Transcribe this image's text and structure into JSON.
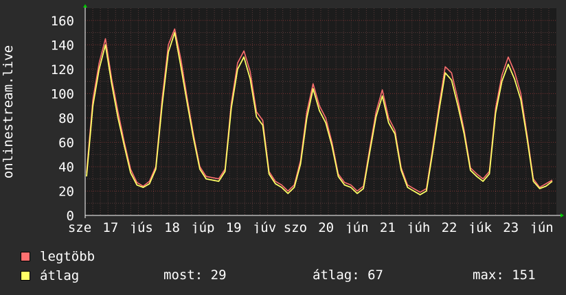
{
  "chart_data": {
    "type": "line",
    "ylabel": "onlinestream.live",
    "ylim": [
      0,
      170
    ],
    "yticks": [
      0,
      20,
      40,
      60,
      80,
      100,
      120,
      140,
      160
    ],
    "xlim": [
      0,
      168
    ],
    "xticks": [
      {
        "x": 0,
        "label": "sze"
      },
      {
        "x": 12,
        "label": "17"
      },
      {
        "x": 24,
        "label": "jús"
      },
      {
        "x": 36,
        "label": "18"
      },
      {
        "x": 48,
        "label": "júp"
      },
      {
        "x": 60,
        "label": "19"
      },
      {
        "x": 72,
        "label": "júv"
      },
      {
        "x": 84,
        "label": "szo"
      },
      {
        "x": 96,
        "label": "20"
      },
      {
        "x": 108,
        "label": "jún"
      },
      {
        "x": 120,
        "label": "21"
      },
      {
        "x": 132,
        "label": "júh"
      },
      {
        "x": 144,
        "label": "22"
      },
      {
        "x": 156,
        "label": "júk"
      },
      {
        "x": 168,
        "label": "23"
      },
      {
        "x": 180,
        "label": "jún"
      }
    ],
    "grid": true,
    "series": [
      {
        "name": "legtöbb",
        "color": "#ff7070",
        "values": [
          35,
          95,
          125,
          145,
          112,
          85,
          60,
          38,
          27,
          24,
          28,
          40,
          95,
          140,
          153,
          128,
          96,
          66,
          40,
          32,
          31,
          30,
          38,
          92,
          125,
          135,
          118,
          85,
          78,
          36,
          28,
          25,
          20,
          25,
          45,
          85,
          108,
          90,
          80,
          60,
          34,
          27,
          25,
          20,
          24,
          55,
          85,
          103,
          80,
          70,
          39,
          25,
          22,
          19,
          22,
          55,
          90,
          122,
          117,
          95,
          70,
          39,
          34,
          30,
          36,
          88,
          115,
          130,
          118,
          100,
          66,
          30,
          23,
          26,
          29
        ]
      },
      {
        "name": "átlag",
        "color": "#ffff66",
        "values": [
          32,
          90,
          120,
          140,
          108,
          80,
          57,
          35,
          25,
          23,
          26,
          38,
          90,
          134,
          150,
          122,
          92,
          63,
          38,
          30,
          29,
          28,
          36,
          88,
          120,
          130,
          112,
          81,
          74,
          34,
          26,
          23,
          18,
          23,
          42,
          80,
          104,
          86,
          76,
          57,
          32,
          25,
          23,
          18,
          22,
          52,
          81,
          98,
          76,
          67,
          37,
          23,
          20,
          17,
          20,
          52,
          86,
          117,
          111,
          90,
          67,
          37,
          32,
          28,
          34,
          84,
          110,
          124,
          112,
          95,
          63,
          28,
          22,
          24,
          28
        ]
      }
    ]
  },
  "legend": {
    "items": [
      {
        "label": "legtöbb",
        "color": "#ff7070"
      },
      {
        "label": "átlag",
        "color": "#ffff66"
      }
    ],
    "stats": {
      "current": "most: 29",
      "average": "átlag: 67",
      "max": "max: 151"
    }
  },
  "colors": {
    "background": "#2b2b2b",
    "plot": "#1c1c1c",
    "grid": "#5a3a3a",
    "axis": "#ffffff",
    "arrow": "#00cc00"
  }
}
